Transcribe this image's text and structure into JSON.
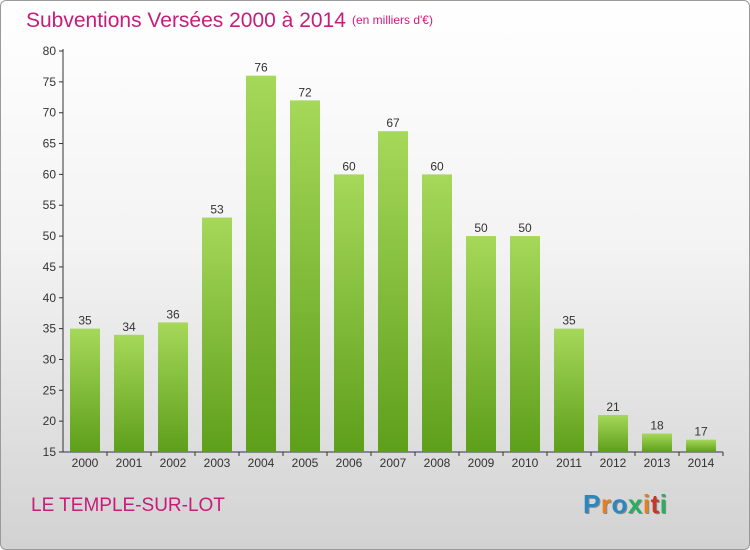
{
  "title": "Subventions Versées 2000 à 2014",
  "subtitle": "(en milliers d'€)",
  "commune": "LE TEMPLE-SUR-LOT",
  "logo": {
    "letters": [
      "P",
      "r",
      "o",
      "x",
      "i",
      "t",
      "i"
    ],
    "colors": [
      "#2e86c1",
      "#e67e22",
      "#2e86c1",
      "#27ae60",
      "#e67e22",
      "#c0392b",
      "#27ae60"
    ]
  },
  "colors": {
    "accent": "#c81c7a",
    "bar_light": "#a6d85a",
    "bar_dark": "#5e9f1a"
  },
  "chart_data": {
    "type": "bar",
    "categories": [
      "2000",
      "2001",
      "2002",
      "2003",
      "2004",
      "2005",
      "2006",
      "2007",
      "2008",
      "2009",
      "2010",
      "2011",
      "2012",
      "2013",
      "2014"
    ],
    "values": [
      35,
      34,
      36,
      53,
      76,
      72,
      60,
      67,
      60,
      50,
      50,
      35,
      21,
      18,
      17
    ],
    "ylim": [
      15,
      80
    ],
    "yticks": [
      15,
      20,
      25,
      30,
      35,
      40,
      45,
      50,
      55,
      60,
      65,
      70,
      75,
      80
    ],
    "grid": false
  }
}
